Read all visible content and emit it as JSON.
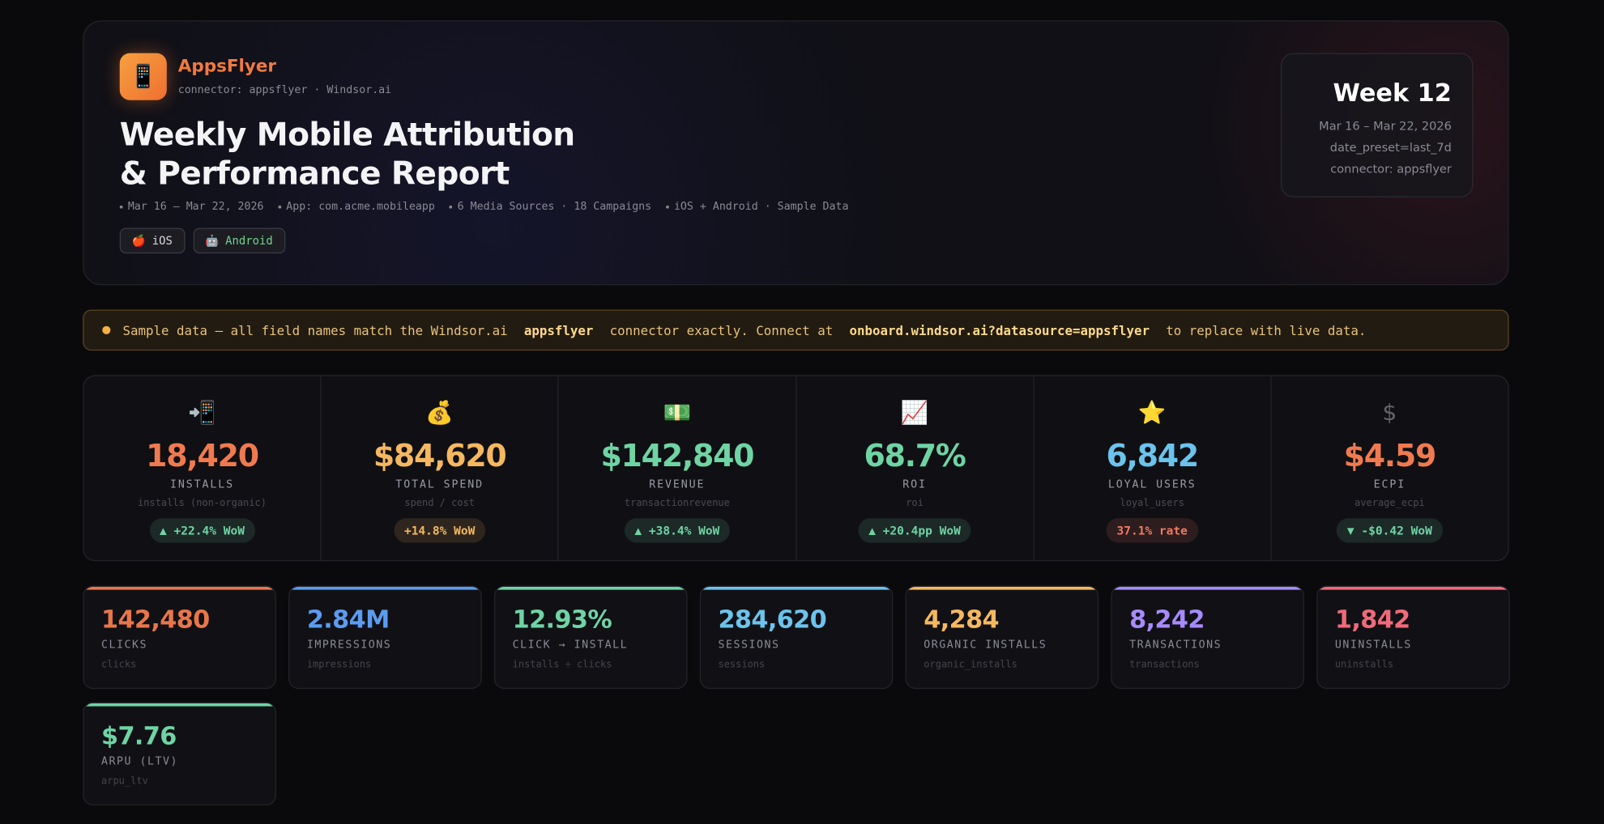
{
  "header": {
    "logo": "📱",
    "brand": "AppsFlyer",
    "connector": "connector: appsflyer · Windsor.ai",
    "title_lines": [
      "Weekly Mobile Attribution",
      "& Performance Report"
    ],
    "meta": [
      "Mar 16 – Mar 22, 2026",
      "App: com.acme.mobileapp",
      "6 Media Sources · 18 Campaigns",
      "iOS + Android · Sample Data"
    ],
    "platforms": [
      {
        "icon": "🍎",
        "label": "iOS",
        "color": "#d8d8de"
      },
      {
        "icon": "🤖",
        "label": "Android",
        "color": "#6fd48f"
      }
    ]
  },
  "week_card": {
    "title": "Week 12",
    "lines": [
      "Mar 16 – Mar 22, 2026",
      "date_preset=last_7d",
      "connector: appsflyer"
    ]
  },
  "banner": {
    "parts": [
      {
        "text": "Sample data — all field names match the Windsor.ai",
        "bold": false
      },
      {
        "text": "appsflyer",
        "bold": true
      },
      {
        "text": "connector exactly. Connect at",
        "bold": false
      },
      {
        "text": "onboard.windsor.ai?datasource=appsflyer",
        "bold": true
      },
      {
        "text": "to replace with live data.",
        "bold": false
      }
    ]
  },
  "kpis": [
    {
      "icon": "📲",
      "value": "18,420",
      "label": "INSTALLS",
      "field": "installs (non-organic)",
      "change": "▲ +22.4% WoW",
      "color": "#f07a50",
      "badge_color": "#6fd4a4"
    },
    {
      "icon": "💰",
      "value": "$84,620",
      "label": "TOTAL SPEND",
      "field": "spend / cost",
      "change": "+14.8% WoW",
      "color": "#f5b860",
      "badge_color": "#f5b860"
    },
    {
      "icon": "💵",
      "value": "$142,840",
      "label": "REVENUE",
      "field": "transactionrevenue",
      "change": "▲ +38.4% WoW",
      "color": "#6fd4a4",
      "badge_color": "#6fd4a4"
    },
    {
      "icon": "📈",
      "value": "68.7%",
      "label": "ROI",
      "field": "roi",
      "change": "▲ +20.4pp WoW",
      "color": "#6fd4a4",
      "badge_color": "#6fd4a4"
    },
    {
      "icon": "⭐",
      "value": "6,842",
      "label": "LOYAL USERS",
      "field": "loyal_users",
      "change": "37.1% rate",
      "color": "#6cc3ec",
      "badge_color": "#f07a60"
    },
    {
      "icon": "$",
      "value": "$4.59",
      "label": "ECPI",
      "field": "average_ecpi",
      "change": "▼ -$0.42 WoW",
      "color": "#f07a50",
      "badge_color": "#6fd4a4"
    }
  ],
  "metrics": [
    {
      "value": "142,480",
      "label": "CLICKS",
      "field": "clicks",
      "color": "#e8764a"
    },
    {
      "value": "2.84M",
      "label": "IMPRESSIONS",
      "field": "impressions",
      "color": "#5b9cf0"
    },
    {
      "value": "12.93%",
      "label": "CLICK → INSTALL",
      "field": "installs ÷ clicks",
      "color": "#6fd4a4"
    },
    {
      "value": "284,620",
      "label": "SESSIONS",
      "field": "sessions",
      "color": "#6cc3ec"
    },
    {
      "value": "4,284",
      "label": "ORGANIC INSTALLS",
      "field": "organic_installs",
      "color": "#f5b860"
    },
    {
      "value": "8,242",
      "label": "TRANSACTIONS",
      "field": "transactions",
      "color": "#a78bfa"
    },
    {
      "value": "1,842",
      "label": "UNINSTALLS",
      "field": "uninstalls",
      "color": "#f06a7a"
    },
    {
      "value": "$7.76",
      "label": "ARPU (LTV)",
      "field": "arpu_ltv",
      "color": "#6fd4a4"
    }
  ]
}
